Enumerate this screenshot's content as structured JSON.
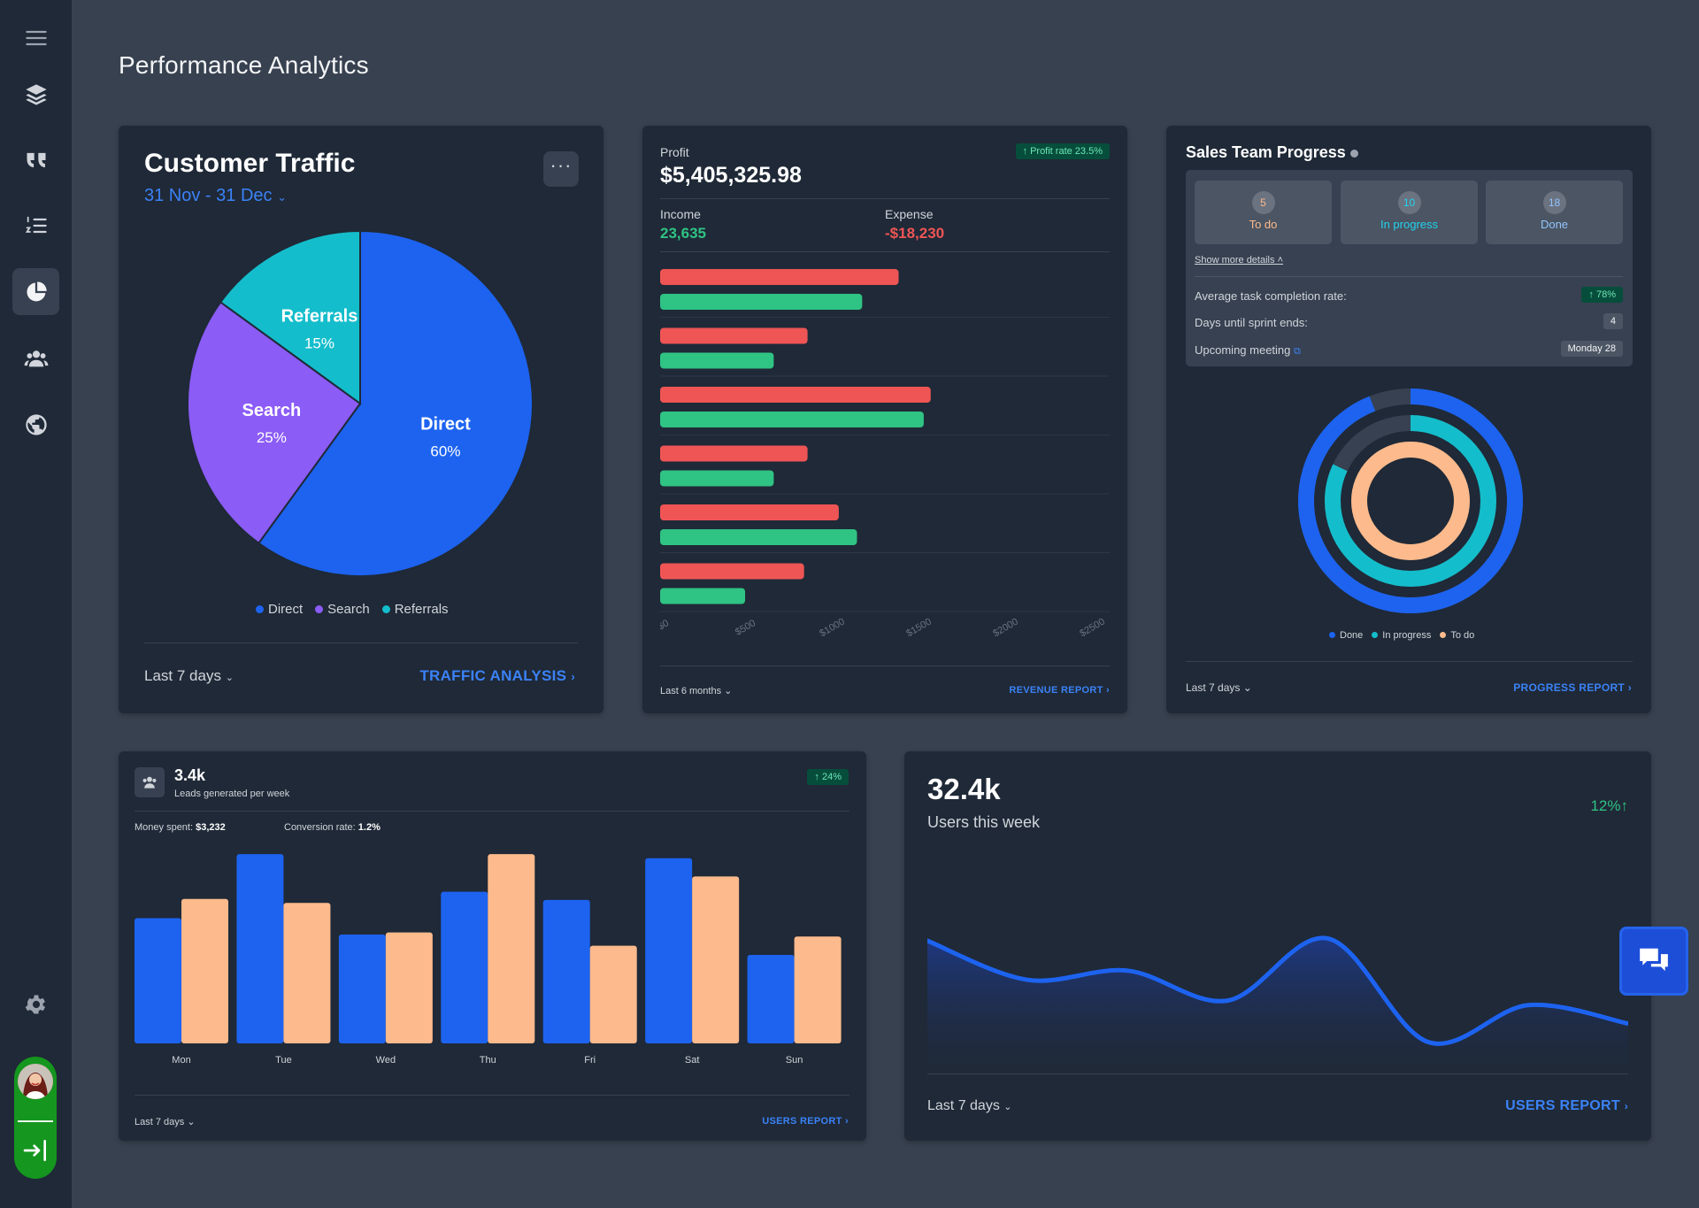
{
  "page": {
    "title": "Performance Analytics"
  },
  "sidebar": {
    "icons": [
      "menu-icon",
      "layers-icon",
      "quote-icon",
      "ordered-list-icon",
      "pie-chart-icon",
      "users-icon",
      "globe-icon",
      "gear-icon"
    ],
    "active_index": 4
  },
  "traffic": {
    "title": "Customer Traffic",
    "range": "31 Nov - 31 Dec",
    "period": "Last 7 days",
    "link": "TRAFFIC ANALYSIS"
  },
  "profit": {
    "label": "Profit",
    "value": "$5,405,325.98",
    "badge": "Profit rate 23.5%",
    "income_label": "Income",
    "income_value": "23,635",
    "expense_label": "Expense",
    "expense_value": "-$18,230",
    "period": "Last 6 months",
    "link": "REVENUE REPORT"
  },
  "sales": {
    "title": "Sales Team Progress",
    "statuses": [
      {
        "count": "5",
        "label": "To do"
      },
      {
        "count": "10",
        "label": "In progress"
      },
      {
        "count": "18",
        "label": "Done"
      }
    ],
    "show_more": "Show more details",
    "rows": [
      {
        "label": "Average task completion rate:",
        "value": "78%"
      },
      {
        "label": "Days until sprint ends:",
        "value": "4"
      },
      {
        "label": "Upcoming meeting",
        "value": "Monday 28"
      }
    ],
    "period": "Last 7 days",
    "link": "PROGRESS REPORT"
  },
  "leads": {
    "value": "3.4k",
    "subtitle": "Leads generated per week",
    "badge": "24%",
    "money_label": "Money spent:",
    "money_value": "$3,232",
    "conv_label": "Conversion rate:",
    "conv_value": "1.2%",
    "period": "Last 7 days",
    "link": "USERS REPORT"
  },
  "users": {
    "value": "32.4k",
    "subtitle": "Users this week",
    "change": "12%",
    "period": "Last 7 days",
    "link": "USERS REPORT"
  },
  "colors": {
    "blue": "#1d63f0",
    "purple": "#8b5cf6",
    "cyan": "#14bdcb",
    "red": "#ef5555",
    "green": "#2fc384",
    "peach": "#fdba8c"
  },
  "chart_data": [
    {
      "type": "pie",
      "categories": [
        "Direct",
        "Search",
        "Referrals"
      ],
      "values": [
        60,
        25,
        15
      ],
      "labels": [
        "60%",
        "25%",
        "15%"
      ],
      "legend": "bottom"
    },
    {
      "type": "bar",
      "orientation": "horizontal",
      "x_ticks": [
        "$0",
        "$500",
        "$1000",
        "$1500",
        "$2000",
        "$2500"
      ],
      "xlim": [
        0,
        2500
      ],
      "series": [
        {
          "color": "#ef5555",
          "values": [
            1375,
            850,
            1560,
            850,
            1030,
            830
          ]
        },
        {
          "color": "#2fc384",
          "values": [
            1165,
            655,
            1520,
            655,
            1135,
            490
          ]
        }
      ],
      "grid": true
    },
    {
      "type": "radial-bar",
      "categories": [
        "Done",
        "In progress",
        "To do"
      ],
      "values": [
        18,
        10,
        5
      ],
      "legend": "bottom"
    },
    {
      "type": "bar",
      "categories": [
        "Mon",
        "Tue",
        "Wed",
        "Thu",
        "Fri",
        "Sat",
        "Sun"
      ],
      "series": [
        {
          "color": "#1d63f0",
          "values": [
            123,
            186,
            107,
            149,
            141,
            182,
            87
          ]
        },
        {
          "color": "#fdba8c",
          "values": [
            142,
            138,
            109,
            186,
            96,
            164,
            105
          ]
        }
      ],
      "ylim": [
        0,
        200
      ]
    },
    {
      "type": "area",
      "values": [
        6,
        4.3,
        4.7,
        3.4,
        6.1,
        1.6,
        3.2,
        2.4
      ],
      "ylim": [
        0,
        10
      ]
    }
  ]
}
